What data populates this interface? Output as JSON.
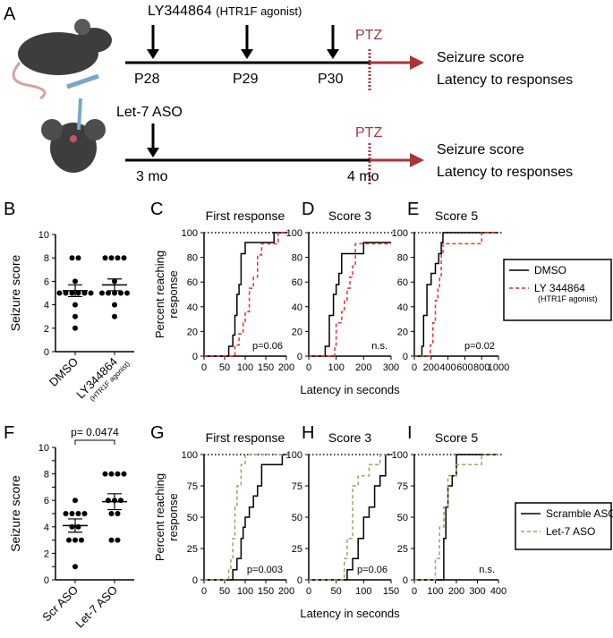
{
  "schematic": {
    "panel": "A",
    "drug": "LY344864",
    "drug_note": "(HTR1F agonist)",
    "days": [
      "P28",
      "P29",
      "P30"
    ],
    "ptz": "PTZ",
    "outcomes": [
      "Seizure score",
      "Latency to responses"
    ],
    "aso": "Let-7 ASO",
    "ages": [
      "3 mo",
      "4 mo"
    ]
  },
  "chart_data": [
    {
      "panel": "B",
      "type": "dot",
      "ylabel": "Seizure score",
      "ylim": [
        0,
        10
      ],
      "yticks": [
        0,
        2,
        4,
        6,
        8,
        10
      ],
      "series": [
        {
          "name": "DMSO",
          "values": [
            8,
            8,
            6,
            5,
            5,
            5,
            5,
            5,
            5,
            4,
            3,
            2
          ],
          "mean": 5.2,
          "sem": 0.5
        },
        {
          "name": "LY344864",
          "note": "(HTR1F agonist)",
          "values": [
            8,
            8,
            8,
            8,
            6,
            5,
            5,
            5,
            5,
            5,
            4,
            3
          ],
          "mean": 5.7,
          "sem": 0.5
        }
      ]
    },
    {
      "panel": "C",
      "type": "step",
      "title": "First response",
      "ylabel": [
        "Percent reaching",
        "response"
      ],
      "xlim": [
        0,
        200
      ],
      "xticks": [
        0,
        50,
        100,
        150,
        200
      ],
      "ylim": [
        0,
        100
      ],
      "yticks": [
        0,
        20,
        40,
        60,
        80,
        100
      ],
      "reference_line": 100,
      "annotation": "p=0.06",
      "series": [
        {
          "color": "#000000",
          "dashed": false,
          "x": [
            0,
            60,
            70,
            75,
            80,
            85,
            90,
            100,
            170,
            200
          ],
          "values": [
            0,
            8,
            17,
            33,
            50,
            58,
            83,
            92,
            100,
            100
          ]
        },
        {
          "color": "#e8312f",
          "dashed": true,
          "x": [
            0,
            75,
            85,
            95,
            100,
            110,
            120,
            130,
            140,
            180,
            200
          ],
          "values": [
            0,
            9,
            18,
            27,
            36,
            55,
            64,
            82,
            91,
            100,
            100
          ]
        }
      ]
    },
    {
      "panel": "D",
      "type": "step",
      "title": "Score 3",
      "xlabel": "Latency in seconds",
      "xlim": [
        0,
        300
      ],
      "xticks": [
        0,
        100,
        200,
        300
      ],
      "ylim": [
        0,
        100
      ],
      "yticks": [
        0,
        20,
        40,
        60,
        80,
        100
      ],
      "reference_line": 100,
      "annotation": "n.s.",
      "series": [
        {
          "color": "#000000",
          "dashed": false,
          "x": [
            0,
            60,
            75,
            90,
            100,
            110,
            120,
            200,
            300
          ],
          "values": [
            0,
            8,
            33,
            50,
            58,
            67,
            83,
            92,
            92
          ]
        },
        {
          "color": "#e8312f",
          "dashed": true,
          "x": [
            0,
            95,
            100,
            120,
            130,
            140,
            150,
            160,
            170,
            300
          ],
          "values": [
            0,
            9,
            27,
            36,
            45,
            55,
            64,
            73,
            91,
            91
          ]
        }
      ]
    },
    {
      "panel": "E",
      "type": "step",
      "title": "Score 5",
      "xlim": [
        0,
        1000
      ],
      "xticks": [
        0,
        200,
        400,
        600,
        800,
        1000
      ],
      "ylim": [
        0,
        100
      ],
      "yticks": [
        0,
        20,
        40,
        60,
        80,
        100
      ],
      "reference_line": 100,
      "annotation": "p=0.02",
      "legend": "right",
      "series": [
        {
          "name": "DMSO",
          "color": "#000000",
          "dashed": false,
          "x": [
            0,
            90,
            110,
            150,
            200,
            250,
            290,
            320,
            340,
            1000
          ],
          "values": [
            0,
            8,
            33,
            58,
            67,
            75,
            83,
            92,
            100,
            100
          ]
        },
        {
          "name": "LY 344864",
          "note": "(HTR1F agonist)",
          "color": "#e8312f",
          "dashed": true,
          "x": [
            0,
            190,
            220,
            250,
            280,
            300,
            320,
            340,
            800,
            1000
          ],
          "values": [
            0,
            9,
            27,
            45,
            55,
            64,
            82,
            91,
            100,
            100
          ]
        }
      ]
    },
    {
      "panel": "F",
      "type": "dot",
      "ylabel": "Seizure score",
      "ylim": [
        0,
        10
      ],
      "yticks": [
        0,
        1,
        2,
        3,
        4,
        5,
        6,
        7,
        8,
        9,
        10
      ],
      "annotation": "p= 0.0474",
      "series": [
        {
          "name": "Scr ASO",
          "values": [
            6,
            5,
            5,
            5,
            5,
            4,
            4,
            3,
            3,
            3,
            1
          ],
          "mean": 4.1,
          "sem": 0.5
        },
        {
          "name": "Let-7 ASO",
          "values": [
            8,
            8,
            8,
            8,
            6,
            6,
            6,
            5,
            5,
            3,
            3
          ],
          "mean": 5.9,
          "sem": 0.6
        }
      ]
    },
    {
      "panel": "G",
      "type": "step",
      "title": "First response",
      "ylabel": [
        "Percent reaching",
        "response"
      ],
      "xlim": [
        0,
        200
      ],
      "xticks": [
        0,
        50,
        100,
        150,
        200
      ],
      "ylim": [
        0,
        100
      ],
      "yticks": [
        0,
        25,
        50,
        75,
        100
      ],
      "reference_line": 100,
      "annotation": "p=0.003",
      "series": [
        {
          "color": "#000000",
          "dashed": false,
          "x": [
            0,
            70,
            80,
            90,
            95,
            100,
            110,
            120,
            130,
            140,
            190,
            200
          ],
          "values": [
            0,
            8,
            17,
            33,
            42,
            50,
            58,
            67,
            75,
            92,
            100,
            100
          ]
        },
        {
          "color": "#a89c6a",
          "dashed": true,
          "x": [
            0,
            60,
            65,
            70,
            75,
            80,
            90,
            100,
            200
          ],
          "values": [
            0,
            8,
            17,
            33,
            58,
            75,
            92,
            100,
            100
          ]
        }
      ]
    },
    {
      "panel": "H",
      "type": "step",
      "title": "Score 3",
      "xlabel": "Latency in seconds",
      "xlim": [
        0,
        150
      ],
      "xticks": [
        0,
        50,
        100,
        150
      ],
      "ylim": [
        0,
        100
      ],
      "yticks": [
        0,
        25,
        50,
        75,
        100
      ],
      "reference_line": 100,
      "annotation": "p=0.06",
      "series": [
        {
          "color": "#000000",
          "dashed": false,
          "x": [
            0,
            70,
            80,
            90,
            100,
            110,
            120,
            130,
            140,
            150
          ],
          "values": [
            0,
            8,
            17,
            33,
            50,
            58,
            75,
            83,
            100,
            100
          ]
        },
        {
          "color": "#a89c6a",
          "dashed": true,
          "x": [
            0,
            65,
            70,
            80,
            90,
            110,
            130,
            150
          ],
          "values": [
            0,
            17,
            33,
            75,
            83,
            92,
            100,
            100
          ]
        }
      ]
    },
    {
      "panel": "I",
      "type": "step",
      "title": "Score 5",
      "xlim": [
        0,
        400
      ],
      "xticks": [
        0,
        100,
        200,
        300,
        400
      ],
      "ylim": [
        0,
        100
      ],
      "yticks": [
        0,
        25,
        50,
        75,
        100
      ],
      "reference_line": 100,
      "annotation": "n.s.",
      "legend": "right",
      "series": [
        {
          "name": "Scramble ASO",
          "color": "#000000",
          "dashed": false,
          "x": [
            0,
            140,
            150,
            160,
            180,
            200,
            400
          ],
          "values": [
            0,
            33,
            58,
            75,
            83,
            100,
            100
          ]
        },
        {
          "name": "Let-7 ASO",
          "color": "#a89c6a",
          "dashed": true,
          "x": [
            0,
            100,
            120,
            140,
            160,
            200,
            320,
            400
          ],
          "values": [
            0,
            17,
            42,
            58,
            83,
            92,
            100,
            100
          ]
        }
      ]
    }
  ]
}
